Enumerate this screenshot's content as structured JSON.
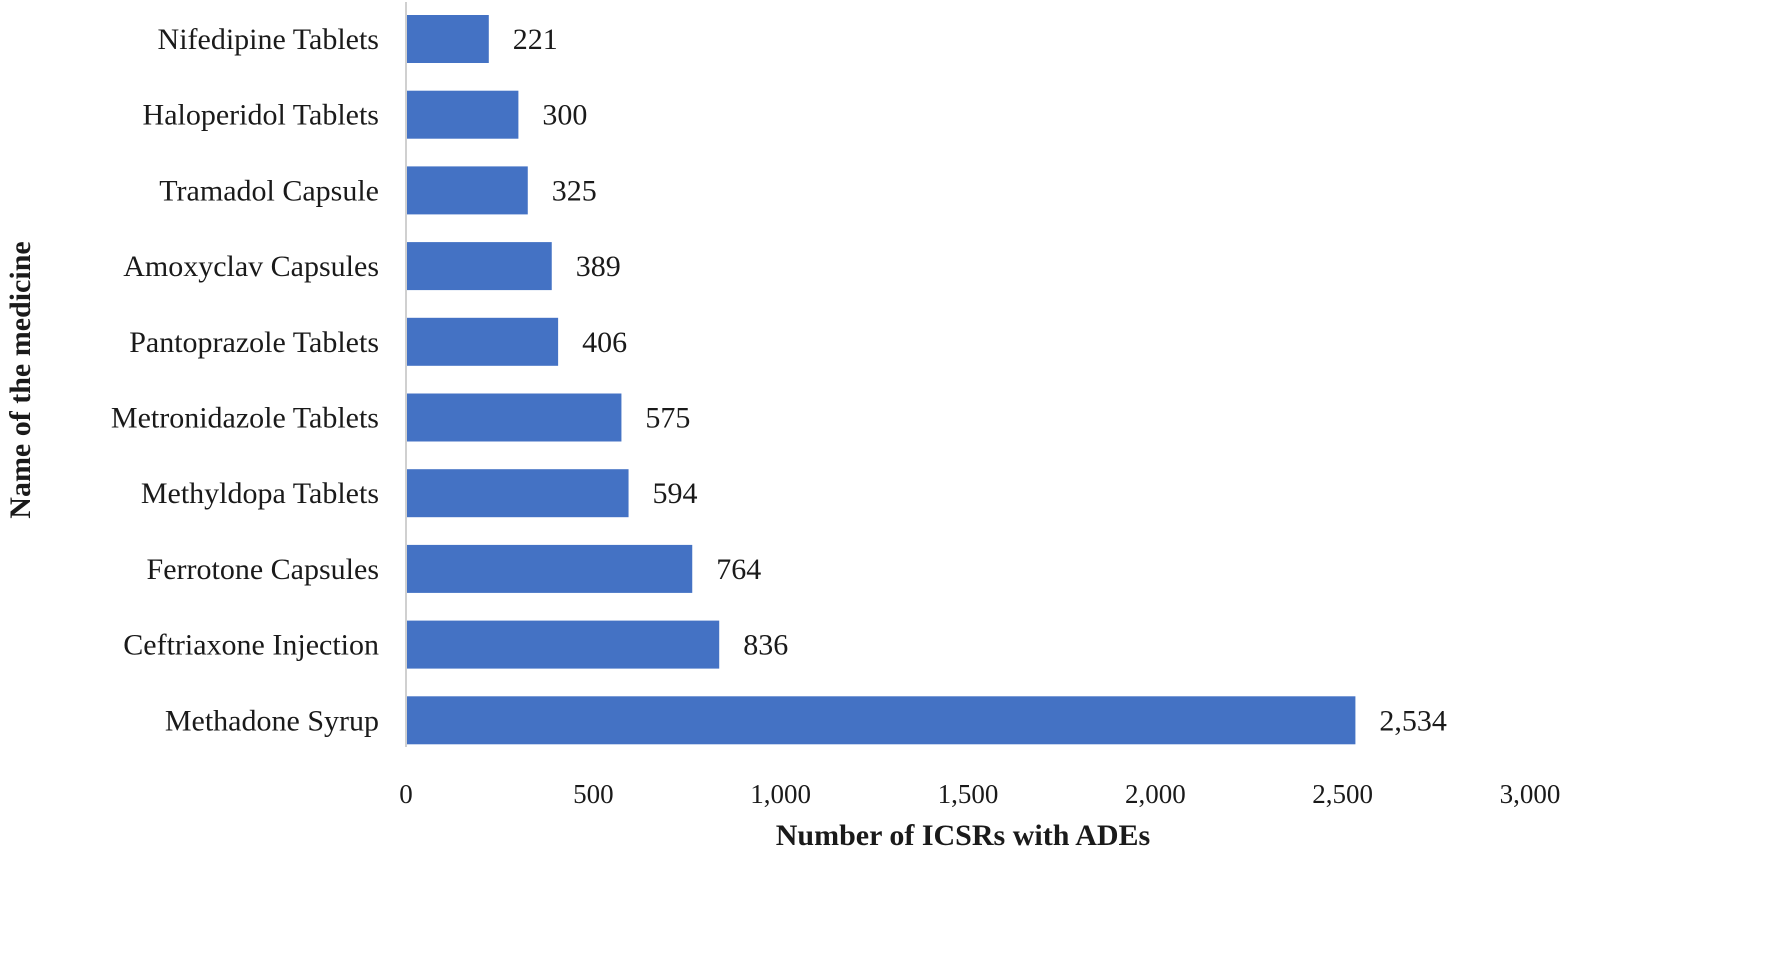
{
  "chart_data": {
    "type": "bar",
    "orientation": "horizontal",
    "title": "",
    "xlabel": "Number of ICSRs with ADEs",
    "ylabel": "Name of the medicine",
    "categories": [
      "Nifedipine Tablets",
      "Haloperidol Tablets",
      "Tramadol Capsule",
      "Amoxyclav Capsules",
      "Pantoprazole Tablets",
      "Metronidazole Tablets",
      "Methyldopa Tablets",
      "Ferrotone Capsules",
      "Ceftriaxone Injection",
      "Methadone Syrup"
    ],
    "values": [
      221,
      300,
      325,
      389,
      406,
      575,
      594,
      764,
      836,
      2534
    ],
    "value_labels": [
      "221",
      "300",
      "325",
      "389",
      "406",
      "575",
      "594",
      "764",
      "836",
      "2,534"
    ],
    "xlim": [
      0,
      3000
    ],
    "xticks": [
      0,
      500,
      1000,
      1500,
      2000,
      2500,
      3000
    ],
    "xtick_labels": [
      "0",
      "500",
      "1,000",
      "1,500",
      "2,000",
      "2,500",
      "3,000"
    ],
    "grid": false,
    "legend": "none",
    "bar_color": "#4472C4"
  }
}
